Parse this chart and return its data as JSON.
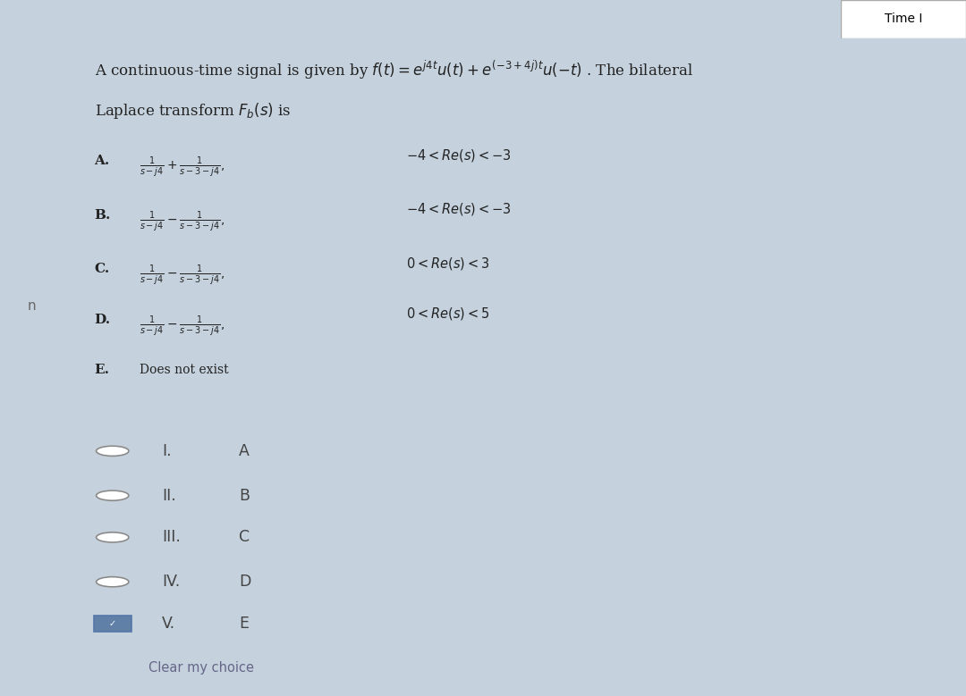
{
  "title_text": "Time I",
  "bg_outer": "#c5d2de",
  "bg_content": "#f0f0f0",
  "bg_lower": "#cdd8e4",
  "bg_left": "#b8c8d8",
  "question_line1": "A continuous-time signal is given by $f(t) = e^{j4t}u(t) + e^{(-3+4j)t}u(-t)$ . The bilateral",
  "question_line2": "Laplace transform $F_b(s)$ is",
  "options": [
    {
      "label": "A.",
      "formula": "$\\frac{1}{s-j4}+\\frac{1}{s-3-j4},$",
      "condition": "$-4 < Re(s) < -3$"
    },
    {
      "label": "B.",
      "formula": "$\\frac{1}{s-j4}-\\frac{1}{s-3-j4},$",
      "condition": "$-4 < Re(s) < -3$"
    },
    {
      "label": "C.",
      "formula": "$\\frac{1}{s-j4}-\\frac{1}{s-3-j4},$",
      "condition": "$0 < Re(s) < 3$"
    },
    {
      "label": "D.",
      "formula": "$\\frac{1}{s-j4}-\\frac{1}{s-3-j4},$",
      "condition": "$0 < Re(s) < 5$"
    },
    {
      "label": "E.",
      "formula": "Does not exist",
      "condition": ""
    }
  ],
  "radio_options": [
    {
      "roman": "I.",
      "letter": "A",
      "selected": false
    },
    {
      "roman": "II.",
      "letter": "B",
      "selected": false
    },
    {
      "roman": "III.",
      "letter": "C",
      "selected": false
    },
    {
      "roman": "IV.",
      "letter": "D",
      "selected": false
    },
    {
      "roman": "V.",
      "letter": "E",
      "selected": true
    }
  ],
  "clear_text": "Clear my choice",
  "selected_box_color": "#6080a8",
  "circle_edge_color": "#888888",
  "circle_fill_color": "#ffffff",
  "text_color": "#222222",
  "radio_text_color": "#444444",
  "clear_text_color": "#666688"
}
